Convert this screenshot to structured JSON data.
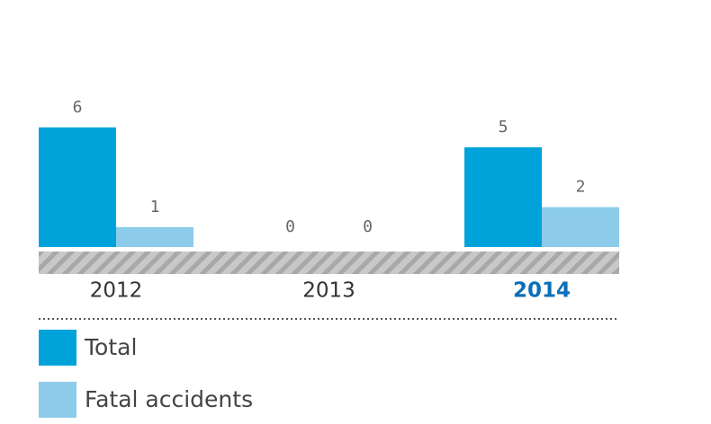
{
  "chart_data": {
    "type": "bar",
    "categories": [
      "2012",
      "2013",
      "2014"
    ],
    "series": [
      {
        "name": "Total",
        "color": "#00a3d9",
        "values": [
          6,
          0,
          5
        ]
      },
      {
        "name": "Fatal accidents",
        "color": "#8ccbea",
        "values": [
          1,
          0,
          2
        ]
      }
    ],
    "highlight": 2,
    "highlight_color": "#0a6fb8",
    "legend": "bottom"
  }
}
